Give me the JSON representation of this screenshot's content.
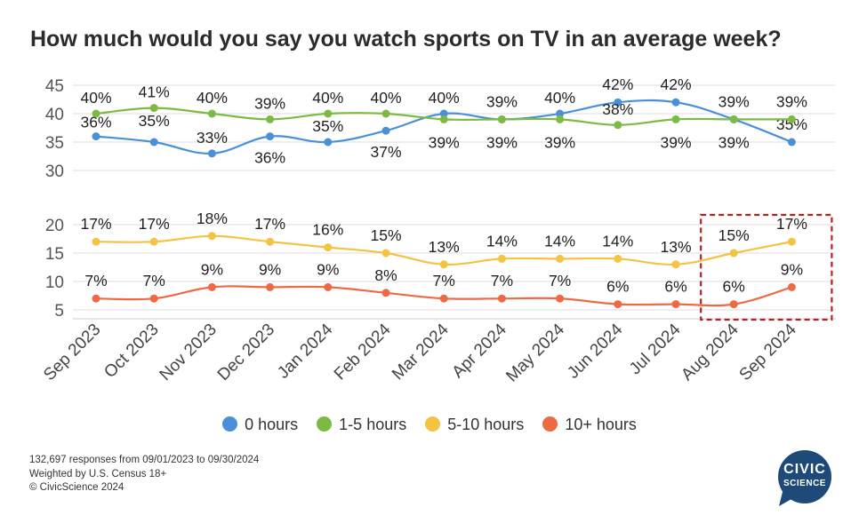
{
  "chart_data": {
    "type": "line",
    "title": "How much would you say you watch sports on TV in an average week?",
    "categories": [
      "Sep 2023",
      "Oct 2023",
      "Nov 2023",
      "Dec 2023",
      "Jan 2024",
      "Feb 2024",
      "Mar 2024",
      "Apr 2024",
      "May 2024",
      "Jun 2024",
      "Jul 2024",
      "Aug 2024",
      "Sep 2024"
    ],
    "series": [
      {
        "name": "0 hours",
        "color": "#4a90d9",
        "values": [
          36,
          35,
          33,
          36,
          35,
          37,
          40,
          39,
          40,
          42,
          42,
          39,
          35
        ],
        "labels": [
          "36%",
          "35%",
          "33%",
          "36%",
          "35%",
          "37%",
          "40%",
          "39%",
          "40%",
          "42%",
          "42%",
          "39%",
          "35%"
        ]
      },
      {
        "name": "1-5 hours",
        "color": "#7dba44",
        "values": [
          40,
          41,
          40,
          39,
          40,
          40,
          39,
          39,
          39,
          38,
          39,
          39,
          39
        ],
        "labels": [
          "40%",
          "41%",
          "40%",
          "39%",
          "40%",
          "40%",
          "39%",
          "39%",
          "39%",
          "38%",
          "39%",
          "39%",
          "39%"
        ]
      },
      {
        "name": "5-10 hours",
        "color": "#f5c342",
        "values": [
          17,
          17,
          18,
          17,
          16,
          15,
          13,
          14,
          14,
          14,
          13,
          15,
          17
        ],
        "labels": [
          "17%",
          "17%",
          "18%",
          "17%",
          "16%",
          "15%",
          "13%",
          "14%",
          "14%",
          "14%",
          "13%",
          "15%",
          "17%"
        ]
      },
      {
        "name": "10+ hours",
        "color": "#ee6a45",
        "values": [
          7,
          7,
          9,
          9,
          9,
          8,
          7,
          7,
          7,
          6,
          6,
          6,
          9
        ],
        "labels": [
          "7%",
          "7%",
          "9%",
          "9%",
          "9%",
          "8%",
          "7%",
          "7%",
          "7%",
          "6%",
          "6%",
          "6%",
          "9%"
        ]
      }
    ],
    "y_axis_lower": {
      "range": [
        5,
        20
      ],
      "ticks": [
        "5",
        "10",
        "15",
        "20"
      ]
    },
    "y_axis_upper": {
      "range": [
        30,
        45
      ],
      "ticks": [
        "30",
        "35",
        "40",
        "45"
      ]
    },
    "axis_break": true,
    "highlight": {
      "from": "Aug 2024",
      "to": "Sep 2024",
      "style": "dashed",
      "color": "#b22222"
    },
    "grid": true,
    "legend_position": "bottom"
  },
  "footer": {
    "line1": "132,697 responses from 09/01/2023 to 09/30/2024",
    "line2": "Weighted by U.S. Census 18+",
    "line3": "© CivicScience 2024"
  },
  "logo": {
    "line1": "CIVIC",
    "line2": "SCIENCE",
    "color": "#1e4a7a"
  }
}
